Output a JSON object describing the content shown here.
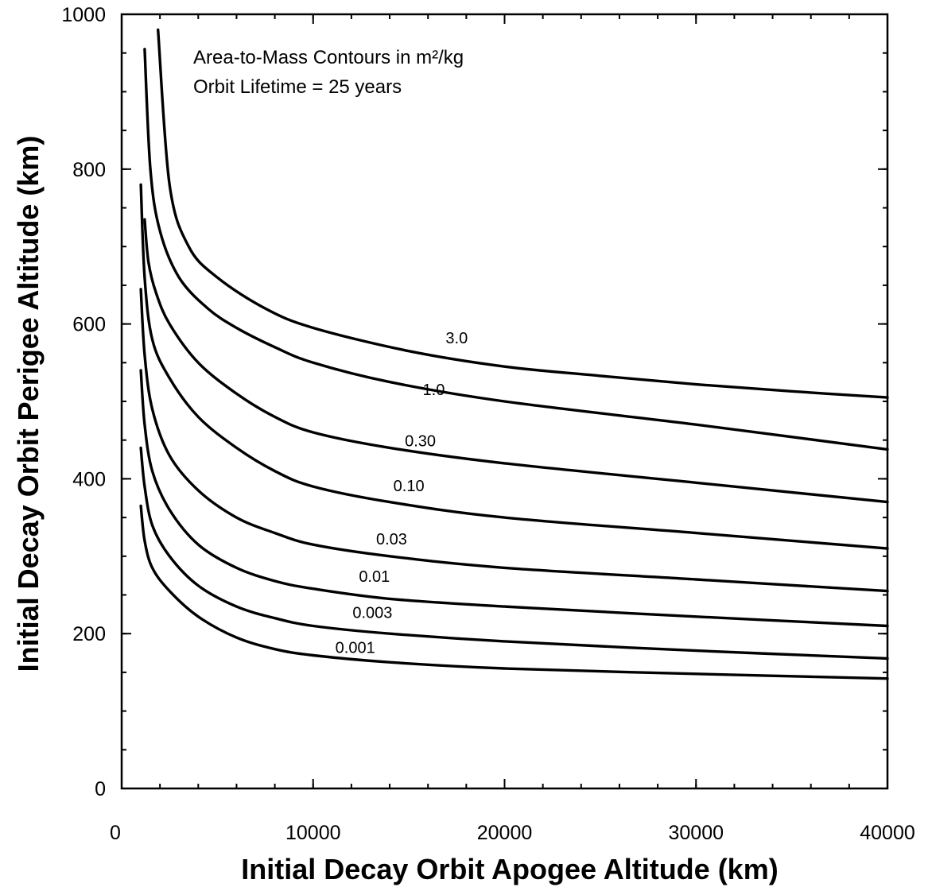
{
  "chart_data": {
    "type": "line",
    "title": "",
    "annotations": [
      "Area-to-Mass Contours in m²/kg",
      "Orbit Lifetime = 25 years"
    ],
    "xlabel": "Initial Decay Orbit Apogee Altitude (km)",
    "ylabel": "Initial Decay Orbit Perigee Altitude (km)",
    "xlim": [
      0,
      40000
    ],
    "ylim": [
      0,
      1000
    ],
    "xticks": [
      0,
      10000,
      20000,
      30000,
      40000
    ],
    "yticks": [
      0,
      200,
      400,
      600,
      800,
      1000
    ],
    "x_tick_labels": [
      "0",
      "10000",
      "20000",
      "30000",
      "40000"
    ],
    "y_tick_labels": [
      "0",
      "200",
      "400",
      "600",
      "800",
      "1000"
    ],
    "grid": false,
    "legend": "none",
    "series": [
      {
        "name": "3.0",
        "label_at": [
          17500,
          575
        ],
        "x": [
          1900,
          2500,
          3500,
          5000,
          7500,
          10000,
          15000,
          20000,
          25000,
          30000,
          35000,
          40000
        ],
        "y": [
          980,
          780,
          700,
          660,
          620,
          595,
          565,
          545,
          533,
          522,
          513,
          505
        ]
      },
      {
        "name": "1.0",
        "label_at": [
          16300,
          508
        ],
        "x": [
          1200,
          1500,
          2000,
          3000,
          4500,
          6000,
          8000,
          10000,
          14000,
          20000,
          30000,
          40000
        ],
        "y": [
          955,
          800,
          720,
          660,
          620,
          595,
          570,
          550,
          525,
          500,
          470,
          438
        ]
      },
      {
        "name": "0.30",
        "label_at": [
          15600,
          442
        ],
        "x": [
          1200,
          1400,
          1800,
          2500,
          4000,
          6000,
          8000,
          10000,
          14000,
          20000,
          30000,
          40000
        ],
        "y": [
          735,
          680,
          640,
          600,
          550,
          510,
          480,
          460,
          440,
          420,
          395,
          370
        ]
      },
      {
        "name": "0.10",
        "label_at": [
          15000,
          384
        ],
        "x": [
          1000,
          1200,
          1600,
          2500,
          4000,
          6000,
          8000,
          10000,
          14000,
          20000,
          30000,
          40000
        ],
        "y": [
          780,
          660,
          580,
          530,
          480,
          440,
          410,
          390,
          370,
          350,
          330,
          310
        ]
      },
      {
        "name": "0.03",
        "label_at": [
          14100,
          315
        ],
        "x": [
          1000,
          1200,
          1600,
          2500,
          4000,
          6000,
          8000,
          10000,
          14000,
          20000,
          30000,
          40000
        ],
        "y": [
          645,
          560,
          490,
          430,
          385,
          350,
          330,
          315,
          300,
          285,
          270,
          255
        ]
      },
      {
        "name": "0.01",
        "label_at": [
          13200,
          267
        ],
        "x": [
          1000,
          1200,
          1600,
          2500,
          4000,
          6000,
          8000,
          10000,
          14000,
          20000,
          30000,
          40000
        ],
        "y": [
          540,
          470,
          410,
          360,
          315,
          285,
          268,
          258,
          245,
          235,
          222,
          210
        ]
      },
      {
        "name": "0.003",
        "label_at": [
          13100,
          220
        ],
        "x": [
          1000,
          1200,
          1600,
          2500,
          4000,
          6000,
          8000,
          10000,
          14000,
          20000,
          30000,
          40000
        ],
        "y": [
          440,
          390,
          340,
          300,
          262,
          235,
          220,
          210,
          200,
          190,
          178,
          168
        ]
      },
      {
        "name": "0.001",
        "label_at": [
          12200,
          175
        ],
        "x": [
          1000,
          1200,
          1600,
          2500,
          4000,
          6000,
          8000,
          10000,
          14000,
          20000,
          30000,
          40000
        ],
        "y": [
          365,
          320,
          285,
          255,
          222,
          195,
          180,
          172,
          163,
          155,
          148,
          142
        ]
      }
    ]
  }
}
